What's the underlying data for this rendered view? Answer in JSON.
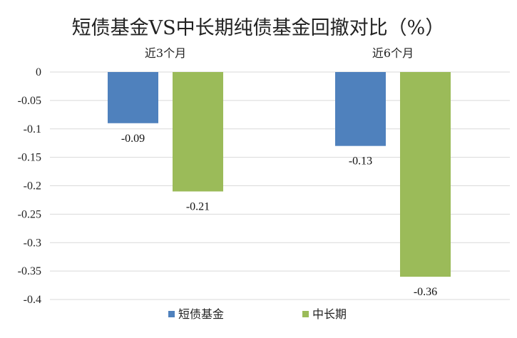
{
  "chart_data": {
    "type": "bar",
    "title": "短债基金VS中长期纯债基金回撤对比（%）",
    "categories": [
      "近3个月",
      "近6个月"
    ],
    "series": [
      {
        "name": "短债基金",
        "values": [
          -0.09,
          -0.13
        ],
        "color": "#4f81bd"
      },
      {
        "name": "中长期",
        "values": [
          -0.21,
          -0.36
        ],
        "color": "#9bbb59"
      }
    ],
    "data_labels": [
      [
        "-0.09",
        "-0.13"
      ],
      [
        "-0.21",
        "-0.36"
      ]
    ],
    "ylim": [
      -0.4,
      0
    ],
    "yticks": [
      "0",
      "-0.05",
      "-0.1",
      "-0.15",
      "-0.2",
      "-0.25",
      "-0.3",
      "-0.35",
      "-0.4"
    ],
    "ytick_values": [
      0,
      -0.05,
      -0.1,
      -0.15,
      -0.2,
      -0.25,
      -0.3,
      -0.35,
      -0.4
    ],
    "grid": true,
    "legend": "bottom-center",
    "category_label_position": "top",
    "grid_color": "#d9d9d9"
  }
}
